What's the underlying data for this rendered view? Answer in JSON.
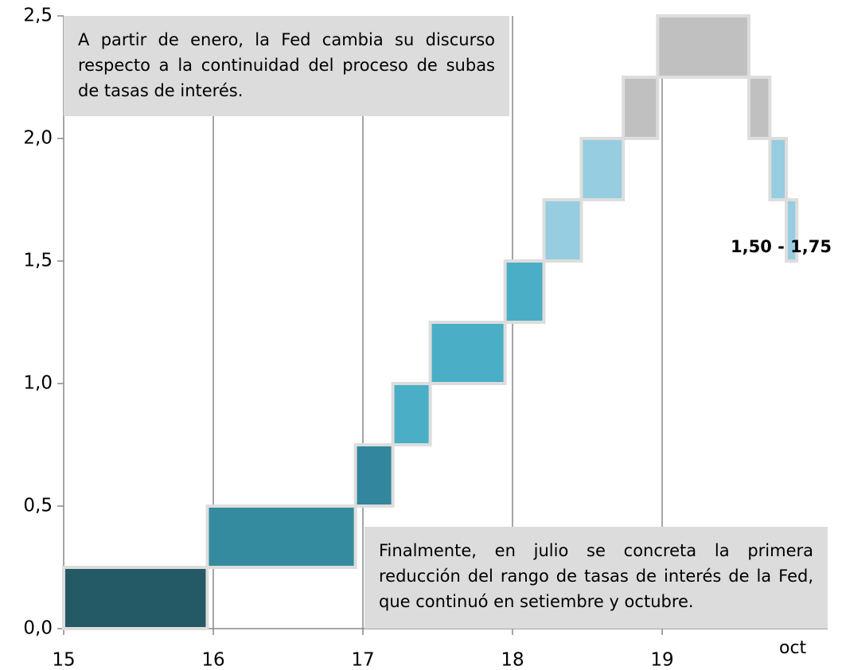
{
  "chart_data": {
    "type": "floating_range",
    "xlim": [
      15,
      20.2
    ],
    "xticks": [
      15,
      16,
      17,
      18,
      19
    ],
    "ylim": [
      0,
      2.5
    ],
    "yticks": [
      {
        "value": 0,
        "label": "0,0"
      },
      {
        "value": 0.5,
        "label": "0,5"
      },
      {
        "value": 1,
        "label": "1,0"
      },
      {
        "value": 1.5,
        "label": "1,5"
      },
      {
        "value": 2,
        "label": "2,0"
      },
      {
        "value": 2.5,
        "label": "2,5"
      }
    ],
    "grid": true,
    "bars": [
      {
        "start": 15,
        "end": 15.96,
        "low": 0,
        "high": 0.25,
        "color": "#235a66"
      },
      {
        "start": 15.96,
        "end": 16.95,
        "low": 0.25,
        "high": 0.5,
        "color": "#348a9e"
      },
      {
        "start": 16.95,
        "end": 17.2,
        "low": 0.5,
        "high": 0.75,
        "color": "#32869e"
      },
      {
        "start": 17.2,
        "end": 17.45,
        "low": 0.75,
        "high": 1.0,
        "color": "#4aaec6"
      },
      {
        "start": 17.45,
        "end": 17.95,
        "low": 1.0,
        "high": 1.25,
        "color": "#4aaec6"
      },
      {
        "start": 17.95,
        "end": 18.21,
        "low": 1.25,
        "high": 1.5,
        "color": "#4aaec6"
      },
      {
        "start": 18.21,
        "end": 18.46,
        "low": 1.5,
        "high": 1.75,
        "color": "#96cde0"
      },
      {
        "start": 18.46,
        "end": 18.74,
        "low": 1.75,
        "high": 2.0,
        "color": "#96cde0"
      },
      {
        "start": 18.74,
        "end": 18.97,
        "low": 2.0,
        "high": 2.25,
        "color": "#c0c0c0"
      },
      {
        "start": 18.97,
        "end": 19.58,
        "low": 2.25,
        "high": 2.5,
        "color": "#c0c0c0"
      },
      {
        "start": 19.58,
        "end": 19.72,
        "low": 2.0,
        "high": 2.25,
        "color": "#c0c0c0"
      },
      {
        "start": 19.72,
        "end": 19.83,
        "low": 1.75,
        "high": 2.0,
        "color": "#96cde0"
      },
      {
        "start": 19.83,
        "end": 19.9,
        "low": 1.5,
        "high": 1.75,
        "color": "#96cde0"
      }
    ],
    "x_end_label": "oct",
    "annotations": [
      "A partir de enero, la Fed cambia su discurso respecto a la continuidad del proceso de subas de tasas de interés.",
      "Finalmente, en julio se concreta la primera reducción del rango de tasas de interés de la Fed, que continuó en setiembre y octubre.",
      "1,50 - 1,75"
    ]
  }
}
